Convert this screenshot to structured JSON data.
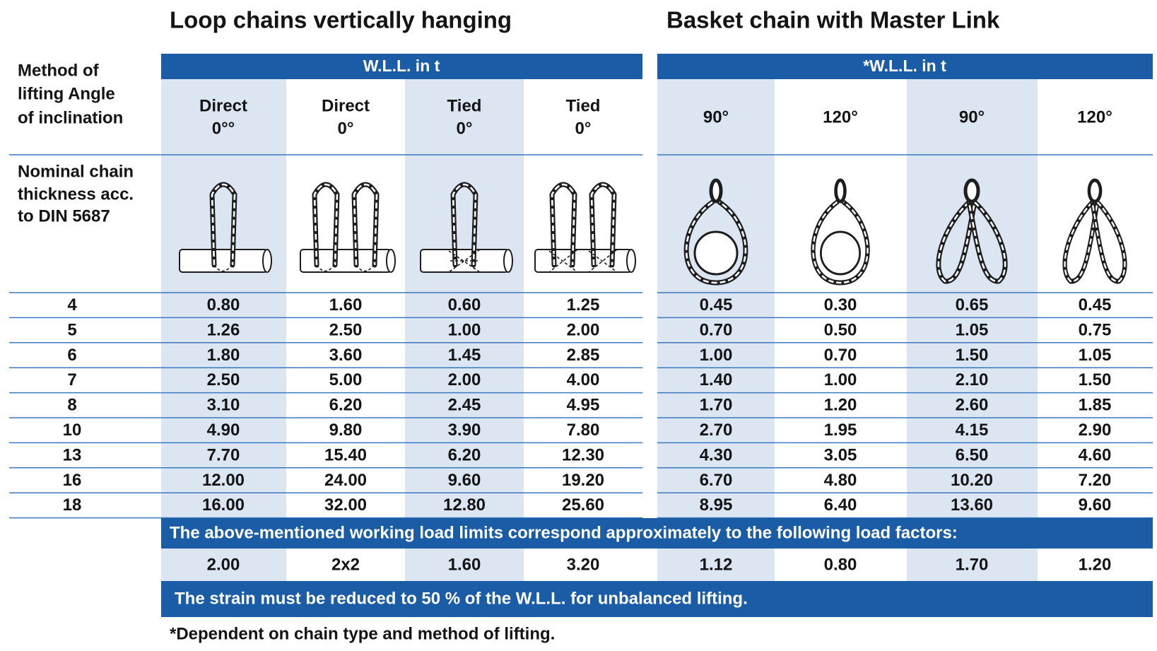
{
  "titles": {
    "loop": "Loop chains vertically hanging",
    "basket": "Basket chain with Master Link"
  },
  "group_headers": {
    "loop": "W.L.L. in t",
    "basket": "*W.L.L. in t"
  },
  "method_label": [
    "Method of",
    "lifting Angle",
    "of inclination"
  ],
  "thickness_label": [
    "Nominal chain",
    "thickness acc.",
    "to DIN 5687"
  ],
  "columns": [
    {
      "method": "Direct",
      "angle": "0°°"
    },
    {
      "method": "Direct",
      "angle": "0°"
    },
    {
      "method": "Tied",
      "angle": "0°"
    },
    {
      "method": "Tied",
      "angle": "0°"
    },
    {
      "angle": "90°"
    },
    {
      "angle": "120°"
    },
    {
      "angle": "90°"
    },
    {
      "angle": "120°"
    }
  ],
  "rows": [
    {
      "size": "4",
      "values": [
        "0.80",
        "1.60",
        "0.60",
        "1.25",
        "0.45",
        "0.30",
        "0.65",
        "0.45"
      ]
    },
    {
      "size": "5",
      "values": [
        "1.26",
        "2.50",
        "1.00",
        "2.00",
        "0.70",
        "0.50",
        "1.05",
        "0.75"
      ]
    },
    {
      "size": "6",
      "values": [
        "1.80",
        "3.60",
        "1.45",
        "2.85",
        "1.00",
        "0.70",
        "1.50",
        "1.05"
      ]
    },
    {
      "size": "7",
      "values": [
        "2.50",
        "5.00",
        "2.00",
        "4.00",
        "1.40",
        "1.00",
        "2.10",
        "1.50"
      ]
    },
    {
      "size": "8",
      "values": [
        "3.10",
        "6.20",
        "2.45",
        "4.95",
        "1.70",
        "1.20",
        "2.60",
        "1.85"
      ]
    },
    {
      "size": "10",
      "values": [
        "4.90",
        "9.80",
        "3.90",
        "7.80",
        "2.70",
        "1.95",
        "4.15",
        "2.90"
      ]
    },
    {
      "size": "13",
      "values": [
        "7.70",
        "15.40",
        "6.20",
        "12.30",
        "4.30",
        "3.05",
        "6.50",
        "4.60"
      ]
    },
    {
      "size": "16",
      "values": [
        "12.00",
        "24.00",
        "9.60",
        "19.20",
        "6.70",
        "4.80",
        "10.20",
        "7.20"
      ]
    },
    {
      "size": "18",
      "values": [
        "16.00",
        "32.00",
        "12.80",
        "25.60",
        "8.95",
        "6.40",
        "13.60",
        "9.60"
      ]
    }
  ],
  "load_factor_note": "The above-mentioned working load limits correspond approximately to the following load factors:",
  "load_factors": [
    "2.00",
    "2x2",
    "1.60",
    "3.20",
    "1.12",
    "0.80",
    "1.70",
    "1.20"
  ],
  "strain_note": "The strain must be reduced to 50 % of the W.L.L. for unbalanced lifting.",
  "footnote": "*Dependent on chain type and method of lifting."
}
